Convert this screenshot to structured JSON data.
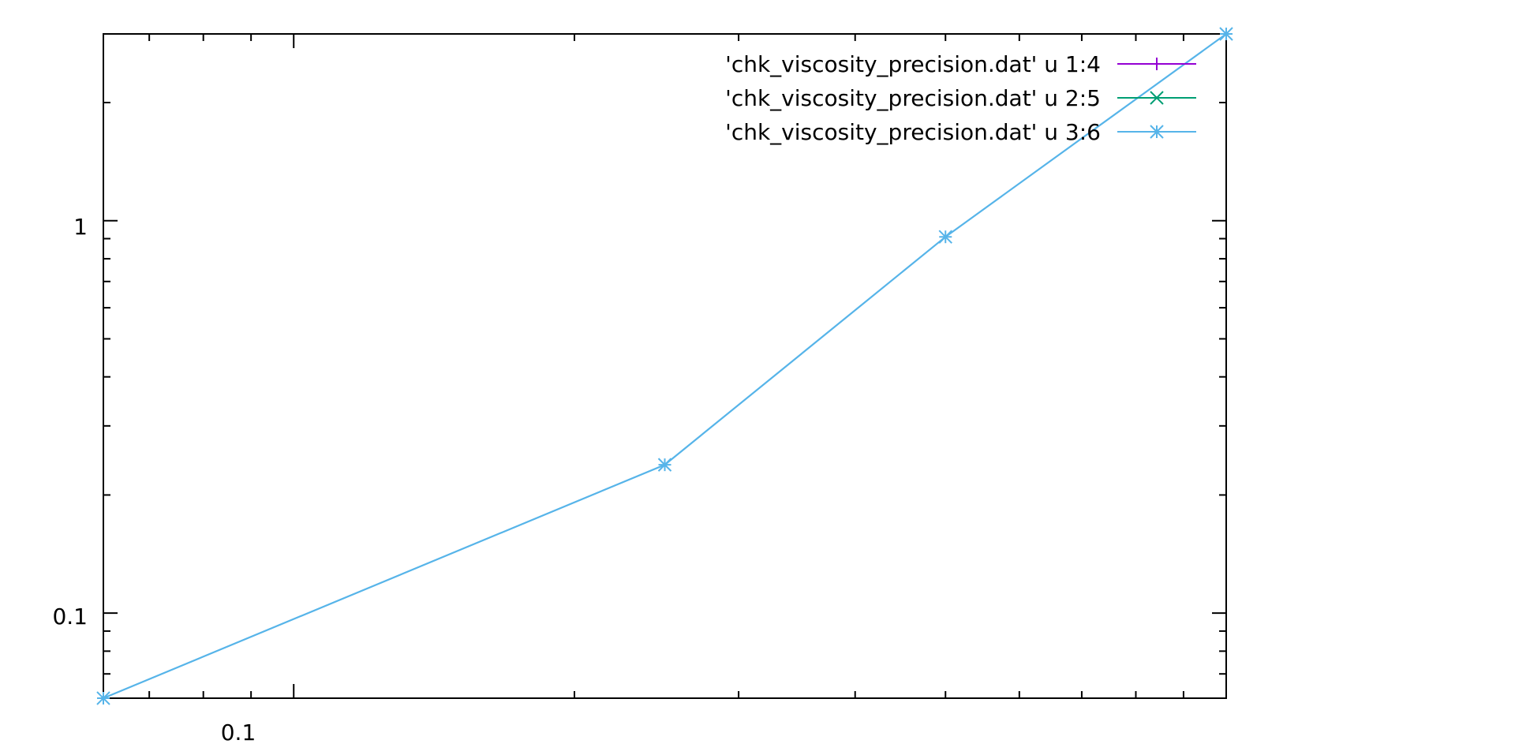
{
  "chart_data": {
    "type": "line",
    "title": "",
    "xlabel": "",
    "ylabel": "",
    "x_scale": "log",
    "y_scale": "log",
    "xlim": [
      0.0625,
      1
    ],
    "ylim": [
      0.0607,
      2.992
    ],
    "x_major_ticks": [
      {
        "value": 0.1,
        "label": "0.1"
      }
    ],
    "y_major_ticks": [
      {
        "value": 0.1,
        "label": "0.1"
      },
      {
        "value": 1,
        "label": "1"
      }
    ],
    "grid": false,
    "legend_position": "top-right",
    "series": [
      {
        "name": "'chk_viscosity_precision.dat' u 1:4",
        "color": "#9400d3",
        "marker": "plus",
        "x": [],
        "y": []
      },
      {
        "name": "'chk_viscosity_precision.dat' u 2:5",
        "color": "#009e73",
        "marker": "cross",
        "x": [],
        "y": []
      },
      {
        "name": "'chk_viscosity_precision.dat' u 3:6",
        "color": "#56b4e9",
        "marker": "star",
        "x": [
          0.0625,
          0.25,
          0.5,
          1
        ],
        "y": [
          0.0607,
          0.2388,
          0.9097,
          2.992
        ]
      }
    ]
  }
}
